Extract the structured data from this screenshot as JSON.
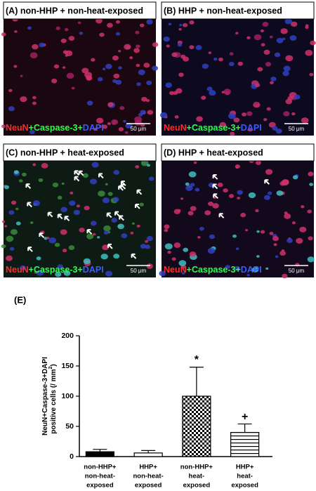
{
  "panels": [
    {
      "title": "(A) non-HHP + non-heat-exposed",
      "stain": [
        "NeuN",
        "+Caspase-3+",
        "DAPI"
      ],
      "scale": "50 μm"
    },
    {
      "title": "(B) HHP + non-heat-exposed",
      "stain": [
        "NeuN",
        "+Caspase-3+",
        "DAPI"
      ],
      "scale": "50 μm"
    },
    {
      "title": "(C) non-HHP + heat-exposed",
      "stain": [
        "NeuN",
        "+Caspase-3+",
        "DAPI"
      ],
      "scale": "50 μm"
    },
    {
      "title": "(D) HHP + heat-exposed",
      "stain": [
        "NeuN",
        "+Caspase-3+",
        "DAPI"
      ],
      "scale": "50 μm"
    }
  ],
  "chart_data": {
    "type": "bar",
    "panel_label": "(E)",
    "y_label": {
      "line1": "NeuN+Caspase-3+DAPI",
      "line2": "positive cells (/ mm",
      "sup": "2",
      "end": ")"
    },
    "categories": [
      [
        "non-HHP+",
        "non-heat-",
        "exposed"
      ],
      [
        "HHP+",
        "non-heat-",
        "exposed"
      ],
      [
        "non-HHP+",
        "heat-",
        "exposed"
      ],
      [
        "HHP+",
        "heat-",
        "exposed"
      ]
    ],
    "values": [
      8,
      6,
      100,
      40
    ],
    "errors": [
      4,
      4,
      48,
      14
    ],
    "fills": [
      "solid-black",
      "solid-white",
      "checker",
      "hlines"
    ],
    "annotations": [
      {
        "text": "*",
        "category": 2
      },
      {
        "text": "+",
        "category": 3
      }
    ],
    "ylim": [
      0,
      200
    ],
    "yticks": [
      0,
      50,
      100,
      150,
      200
    ]
  }
}
